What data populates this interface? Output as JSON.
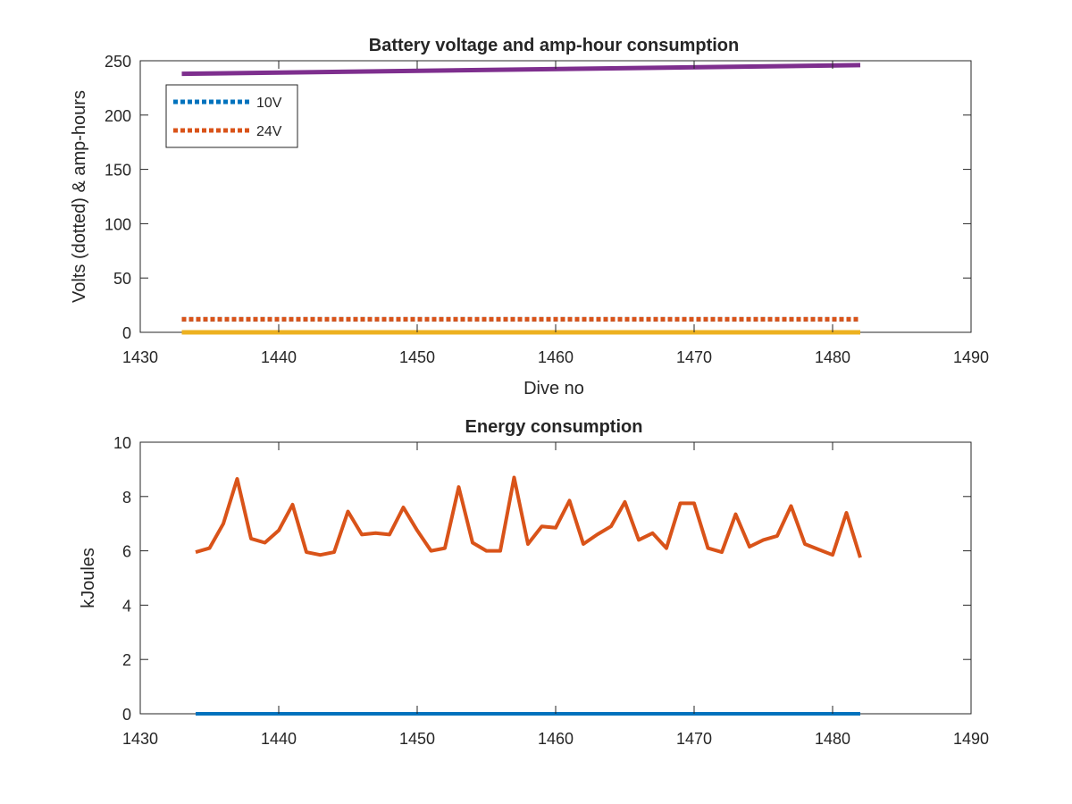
{
  "chart_data": [
    {
      "type": "line",
      "title": "Battery voltage and amp-hour consumption",
      "xlabel": "Dive no",
      "ylabel": "Volts (dotted) & amp-hours",
      "xlim": [
        1430,
        1490
      ],
      "ylim": [
        0,
        250
      ],
      "xticks": [
        "1430",
        "1440",
        "1450",
        "1460",
        "1470",
        "1480",
        "1490"
      ],
      "yticks": [
        "0",
        "50",
        "100",
        "150",
        "200",
        "250"
      ],
      "grid": false,
      "legend_position": "top-left",
      "series": [
        {
          "name": "10V",
          "color": "#0072BD",
          "style": "dotted",
          "x": [
            1433,
            1482
          ],
          "y": [
            12,
            12
          ]
        },
        {
          "name": "24V",
          "color": "#D95319",
          "style": "dotted",
          "x": [
            1433,
            1482
          ],
          "y": [
            12,
            12
          ]
        },
        {
          "color": "#EDB120",
          "style": "solid",
          "x": [
            1433,
            1482
          ],
          "y": [
            0,
            0
          ]
        },
        {
          "color": "#7E2F8E",
          "style": "solid",
          "x": [
            1433,
            1482
          ],
          "y": [
            238,
            246
          ]
        }
      ]
    },
    {
      "type": "line",
      "title": "Energy consumption",
      "xlabel": "",
      "ylabel": "kJoules",
      "xlim": [
        1430,
        1490
      ],
      "ylim": [
        0,
        10
      ],
      "xticks": [
        "1430",
        "1440",
        "1450",
        "1460",
        "1470",
        "1480",
        "1490"
      ],
      "yticks": [
        "0",
        "2",
        "4",
        "6",
        "8",
        "10"
      ],
      "grid": false,
      "series": [
        {
          "color": "#0072BD",
          "style": "solid",
          "x": [
            1434,
            1482
          ],
          "y": [
            0,
            0
          ]
        },
        {
          "color": "#D95319",
          "style": "solid",
          "x": [
            1434,
            1435,
            1436,
            1437,
            1438,
            1439,
            1440,
            1441,
            1442,
            1443,
            1444,
            1445,
            1446,
            1447,
            1448,
            1449,
            1450,
            1451,
            1452,
            1453,
            1454,
            1455,
            1456,
            1457,
            1458,
            1459,
            1460,
            1461,
            1462,
            1463,
            1464,
            1465,
            1466,
            1467,
            1468,
            1469,
            1470,
            1471,
            1472,
            1473,
            1474,
            1475,
            1476,
            1477,
            1478,
            1479,
            1480,
            1481,
            1482
          ],
          "y": [
            5.95,
            6.1,
            7.0,
            8.65,
            6.45,
            6.3,
            6.75,
            7.7,
            5.95,
            5.85,
            5.95,
            7.45,
            6.6,
            6.65,
            6.6,
            7.6,
            6.75,
            6.0,
            6.1,
            8.35,
            6.3,
            6.0,
            6.0,
            8.7,
            6.25,
            6.9,
            6.85,
            7.85,
            6.25,
            6.6,
            6.9,
            7.8,
            6.4,
            6.65,
            6.1,
            7.75,
            7.75,
            6.1,
            5.95,
            7.35,
            6.15,
            6.4,
            6.55,
            7.65,
            6.25,
            6.05,
            5.85,
            7.4,
            5.75
          ]
        }
      ]
    }
  ]
}
